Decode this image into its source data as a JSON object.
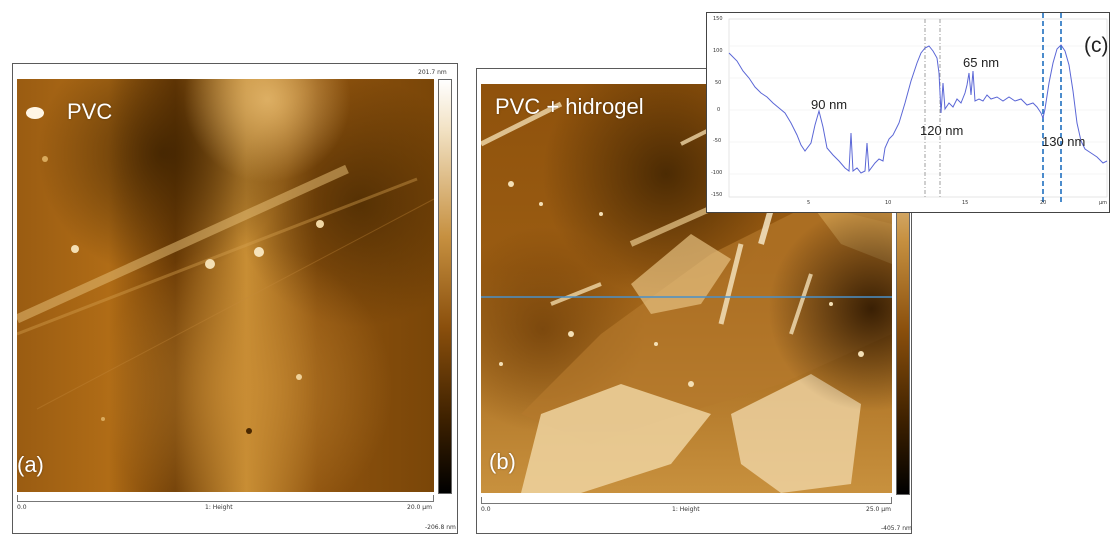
{
  "panel_a": {
    "label": "PVC",
    "tag": "(a)",
    "scale_max": "201.7 nm",
    "scale_min": "-206.8 nm",
    "axis_start": "0.0",
    "axis_mid": "1: Height",
    "axis_end": "20.0 µm"
  },
  "panel_b": {
    "label": "PVC + hidrogel",
    "tag": "(b)",
    "scale_min": "-405.7 nm",
    "axis_start": "0.0",
    "axis_mid": "1: Height",
    "axis_end": "25.0 µm"
  },
  "panel_c": {
    "tag": "(c)",
    "annotations": [
      "90 nm",
      "65 nm",
      "120 nm",
      "130 nm"
    ],
    "y_ticks": [
      "150",
      "100",
      "50",
      "0",
      "-50",
      "-100",
      "-150"
    ],
    "x_ticks": [
      "5",
      "10",
      "15",
      "20"
    ],
    "x_unit": "µm"
  },
  "colors": {
    "afm_dark": "#3a2000",
    "afm_mid": "#a8640f",
    "afm_light": "#f3e3c6",
    "profile_line": "#5b67d6",
    "marker_line": "#1f6fc0"
  }
}
